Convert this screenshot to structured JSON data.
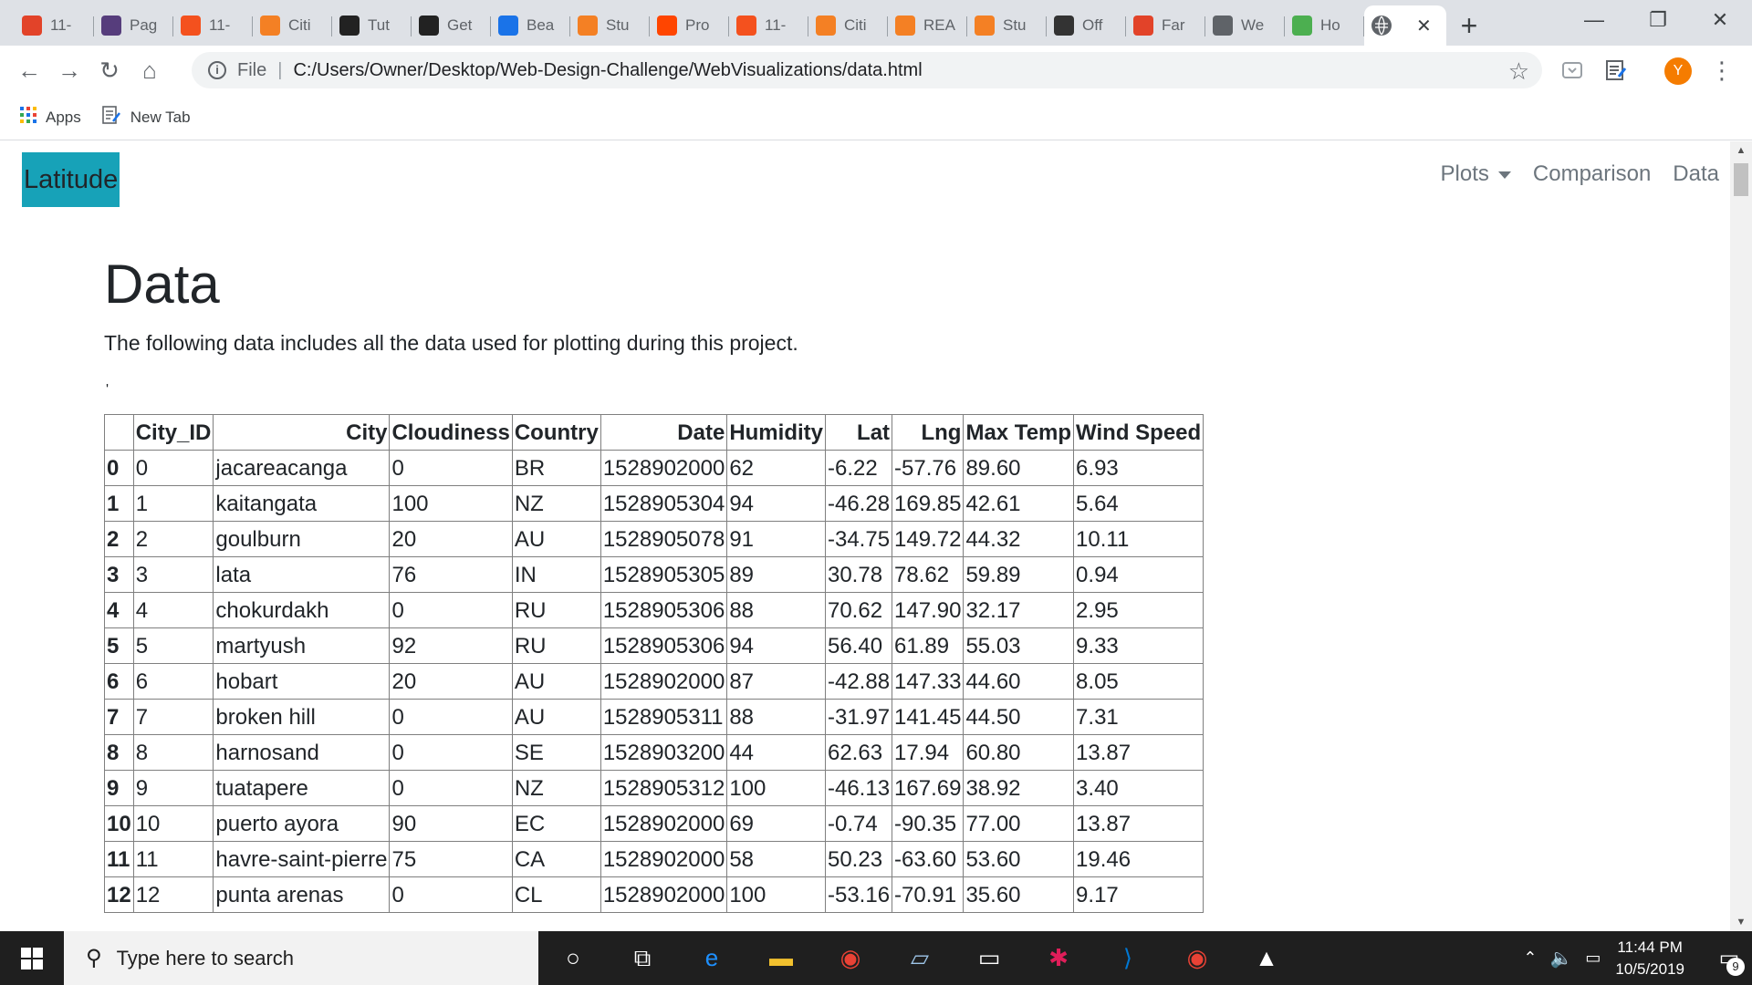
{
  "browser": {
    "tabs": [
      {
        "label": "11-",
        "icon": "gitlab-icon",
        "color": "#e24329"
      },
      {
        "label": "Pag",
        "icon": "bootstrap-icon",
        "color": "#563d7c"
      },
      {
        "label": "11-",
        "icon": "loading-icon",
        "color": "#f4511e"
      },
      {
        "label": "Citi",
        "icon": "document-icon",
        "color": "#f48024"
      },
      {
        "label": "Tut",
        "icon": "code-icon",
        "color": "#222222"
      },
      {
        "label": "Get",
        "icon": "document-icon",
        "color": "#222222"
      },
      {
        "label": "Bea",
        "icon": "c-icon",
        "color": "#1a73e8"
      },
      {
        "label": "Stu",
        "icon": "document-icon",
        "color": "#f48024"
      },
      {
        "label": "Pro",
        "icon": "reddit-icon",
        "color": "#ff4500"
      },
      {
        "label": "11-",
        "icon": "loading-icon",
        "color": "#f4511e"
      },
      {
        "label": "Citi",
        "icon": "document-icon",
        "color": "#f48024"
      },
      {
        "label": "REA",
        "icon": "file-icon",
        "color": "#f48024"
      },
      {
        "label": "Stu",
        "icon": "document-icon",
        "color": "#f48024"
      },
      {
        "label": "Off",
        "icon": "nhl-icon",
        "color": "#333333"
      },
      {
        "label": "Far",
        "icon": "gitlab-icon",
        "color": "#e24329"
      },
      {
        "label": "We",
        "icon": "globe-icon",
        "color": "#5f6368"
      },
      {
        "label": "Ho",
        "icon": "w3-icon",
        "color": "#4caf50"
      }
    ],
    "active_tab_icon": "globe-icon",
    "new_tab_label": "+",
    "address": {
      "scheme_label": "File",
      "url": "C:/Users/Owner/Desktop/Web-Design-Challenge/WebVisualizations/data.html"
    },
    "profile_initial": "Y",
    "bookmarks": [
      {
        "label": "Apps",
        "icon": "apps-grid-icon"
      },
      {
        "label": "New Tab",
        "icon": "page-icon"
      }
    ]
  },
  "page": {
    "brand": "Latitude",
    "nav": {
      "plots": "Plots",
      "comparison": "Comparison",
      "data": "Data"
    },
    "title": "Data",
    "lead": "The following data includes all the data used for plotting during this project.",
    "stray_mark": "'",
    "table": {
      "columns": [
        "",
        "City_ID",
        "City",
        "Cloudiness",
        "Country",
        "Date",
        "Humidity",
        "Lat",
        "Lng",
        "Max Temp",
        "Wind Speed"
      ],
      "rows": [
        [
          "0",
          "0",
          "jacareacanga",
          "0",
          "BR",
          "1528902000",
          "62",
          "-6.22",
          "-57.76",
          "89.60",
          "6.93"
        ],
        [
          "1",
          "1",
          "kaitangata",
          "100",
          "NZ",
          "1528905304",
          "94",
          "-46.28",
          "169.85",
          "42.61",
          "5.64"
        ],
        [
          "2",
          "2",
          "goulburn",
          "20",
          "AU",
          "1528905078",
          "91",
          "-34.75",
          "149.72",
          "44.32",
          "10.11"
        ],
        [
          "3",
          "3",
          "lata",
          "76",
          "IN",
          "1528905305",
          "89",
          "30.78",
          "78.62",
          "59.89",
          "0.94"
        ],
        [
          "4",
          "4",
          "chokurdakh",
          "0",
          "RU",
          "1528905306",
          "88",
          "70.62",
          "147.90",
          "32.17",
          "2.95"
        ],
        [
          "5",
          "5",
          "martyush",
          "92",
          "RU",
          "1528905306",
          "94",
          "56.40",
          "61.89",
          "55.03",
          "9.33"
        ],
        [
          "6",
          "6",
          "hobart",
          "20",
          "AU",
          "1528902000",
          "87",
          "-42.88",
          "147.33",
          "44.60",
          "8.05"
        ],
        [
          "7",
          "7",
          "broken hill",
          "0",
          "AU",
          "1528905311",
          "88",
          "-31.97",
          "141.45",
          "44.50",
          "7.31"
        ],
        [
          "8",
          "8",
          "harnosand",
          "0",
          "SE",
          "1528903200",
          "44",
          "62.63",
          "17.94",
          "60.80",
          "13.87"
        ],
        [
          "9",
          "9",
          "tuatapere",
          "0",
          "NZ",
          "1528905312",
          "100",
          "-46.13",
          "167.69",
          "38.92",
          "3.40"
        ],
        [
          "10",
          "10",
          "puerto ayora",
          "90",
          "EC",
          "1528902000",
          "69",
          "-0.74",
          "-90.35",
          "77.00",
          "13.87"
        ],
        [
          "11",
          "11",
          "havre-saint-pierre",
          "75",
          "CA",
          "1528902000",
          "58",
          "50.23",
          "-63.60",
          "53.60",
          "19.46"
        ],
        [
          "12",
          "12",
          "punta arenas",
          "0",
          "CL",
          "1528902000",
          "100",
          "-53.16",
          "-70.91",
          "35.60",
          "9.17"
        ]
      ]
    }
  },
  "taskbar": {
    "search_placeholder": "Type here to search",
    "time": "11:44 PM",
    "date": "10/5/2019",
    "notification_count": "9",
    "apps": [
      "cortana-icon",
      "task-view-icon",
      "edge-icon",
      "file-explorer-icon",
      "chrome-icon",
      "notepad-icon",
      "terminal-icon",
      "slack-icon",
      "vscode-icon",
      "chrome-icon",
      "photos-icon"
    ]
  },
  "colors": {
    "brand_bg": "#17a2b8",
    "tab_strip": "#dee1e6",
    "taskbar": "#1f1f1f"
  }
}
